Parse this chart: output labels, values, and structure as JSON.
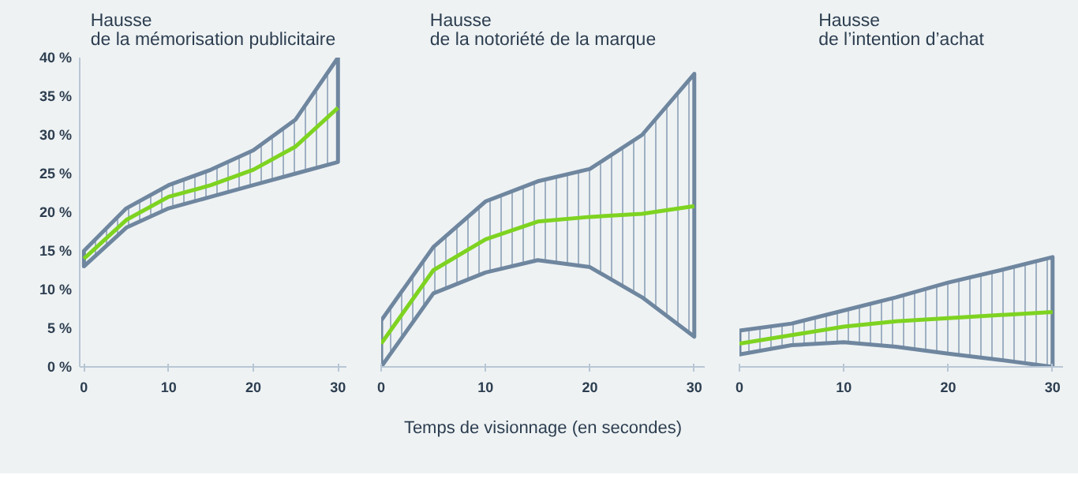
{
  "chart_data": [
    {
      "type": "line",
      "title": "Hausse\nde la mémorisation publicitaire",
      "x": [
        0,
        5,
        10,
        15,
        20,
        25,
        30
      ],
      "xlim": [
        -0.5,
        31
      ],
      "xticks": [
        0,
        10,
        20,
        30
      ],
      "ylim": [
        0,
        40
      ],
      "yticks": [
        {
          "value": 0,
          "label": "0 %"
        },
        {
          "value": 5,
          "label": "5 %"
        },
        {
          "value": 10,
          "label": "10 %"
        },
        {
          "value": 15,
          "label": "15 %"
        },
        {
          "value": 20,
          "label": "20 %"
        },
        {
          "value": 25,
          "label": "25 %"
        },
        {
          "value": 30,
          "label": "30 %"
        },
        {
          "value": 35,
          "label": "35 %"
        },
        {
          "value": 40,
          "label": "40 %"
        }
      ],
      "grid": false,
      "series": [
        {
          "color": "#7ed321",
          "values": [
            14,
            19,
            22,
            23.5,
            25.5,
            28.5,
            33.5
          ],
          "lower": [
            13,
            18,
            20.5,
            22,
            23.5,
            25,
            26.5
          ],
          "upper": [
            15,
            20.5,
            23.5,
            25.5,
            28,
            32,
            40
          ]
        }
      ]
    },
    {
      "type": "line",
      "title": "Hausse\nde la notoriété de la marque",
      "xlabel": "Temps de visionnage (en secondes)",
      "x": [
        0,
        5,
        10,
        15,
        20,
        25,
        30
      ],
      "xlim": [
        0,
        31
      ],
      "xticks": [
        0,
        10,
        20,
        30
      ],
      "ylim": [
        0,
        40
      ],
      "tick_labels": "x",
      "grid": false,
      "series": [
        {
          "color": "#7ed321",
          "values": [
            3,
            12.5,
            16.5,
            18.8,
            19.4,
            19.8,
            20.8
          ],
          "lower": [
            0,
            9.5,
            12.2,
            13.8,
            12.9,
            9,
            3.9
          ],
          "upper": [
            6,
            15.5,
            21.4,
            24,
            25.6,
            30,
            37.9
          ]
        }
      ]
    },
    {
      "type": "line",
      "title": "Hausse\nde l’intention d’achat",
      "x": [
        0,
        5,
        10,
        15,
        20,
        25,
        30
      ],
      "xlim": [
        0,
        31
      ],
      "xticks": [
        0,
        10,
        20,
        30
      ],
      "ylim": [
        0,
        40
      ],
      "tick_labels": "x",
      "grid": false,
      "series": [
        {
          "color": "#7ed321",
          "values": [
            3,
            4.1,
            5.2,
            5.9,
            6.3,
            6.7,
            7.1
          ],
          "lower": [
            1.6,
            2.8,
            3.2,
            2.6,
            1.7,
            0.9,
            0
          ],
          "upper": [
            4.7,
            5.6,
            7.3,
            9,
            10.9,
            12.5,
            14.2
          ]
        }
      ]
    }
  ]
}
